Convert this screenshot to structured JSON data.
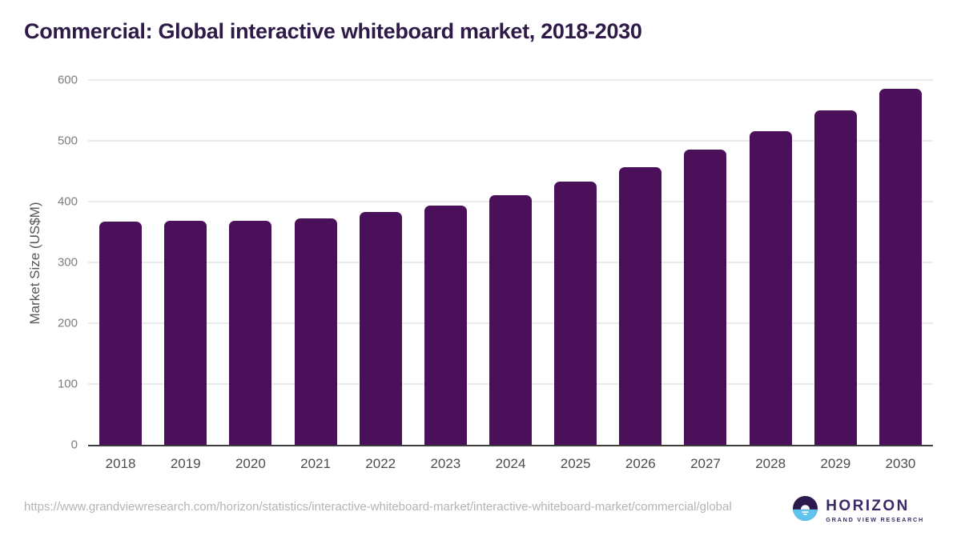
{
  "title": "Commercial: Global interactive whiteboard market, 2018-2030",
  "chart_data": {
    "type": "bar",
    "title": "Commercial: Global interactive whiteboard market, 2018-2030",
    "categories": [
      "2018",
      "2019",
      "2020",
      "2021",
      "2022",
      "2023",
      "2024",
      "2025",
      "2026",
      "2027",
      "2028",
      "2029",
      "2030"
    ],
    "values": [
      367,
      368,
      369,
      373,
      383,
      394,
      411,
      433,
      457,
      485,
      516,
      550,
      586
    ],
    "xlabel": "",
    "ylabel": "Market Size (US$M)",
    "ylim": [
      0,
      600
    ],
    "yticks": [
      0,
      100,
      200,
      300,
      400,
      500,
      600
    ],
    "grid": true,
    "legend": false,
    "bar_color": "#4a1059"
  },
  "footer": {
    "source_url": "https://www.grandviewresearch.com/horizon/statistics/interactive-whiteboard-market/interactive-whiteboard-market/commercial/global",
    "logo": {
      "brand": "HORIZON",
      "sub_brand": "GRAND VIEW RESEARCH",
      "icon": "horizon-sun-icon"
    }
  },
  "colors": {
    "title_text": "#2e1a47",
    "bar": "#4a1059",
    "axis_label": "#565656",
    "y_tick_label": "#7d7d7d",
    "x_tick_label": "#4c4c4c",
    "gridline": "#ebebeb",
    "axis_line": "#3d3d3d",
    "url_text": "#b3b3b3",
    "logo_purple": "#2c1a4d",
    "logo_blue": "#5fc3ed",
    "logo_text": "#3c2a66"
  }
}
